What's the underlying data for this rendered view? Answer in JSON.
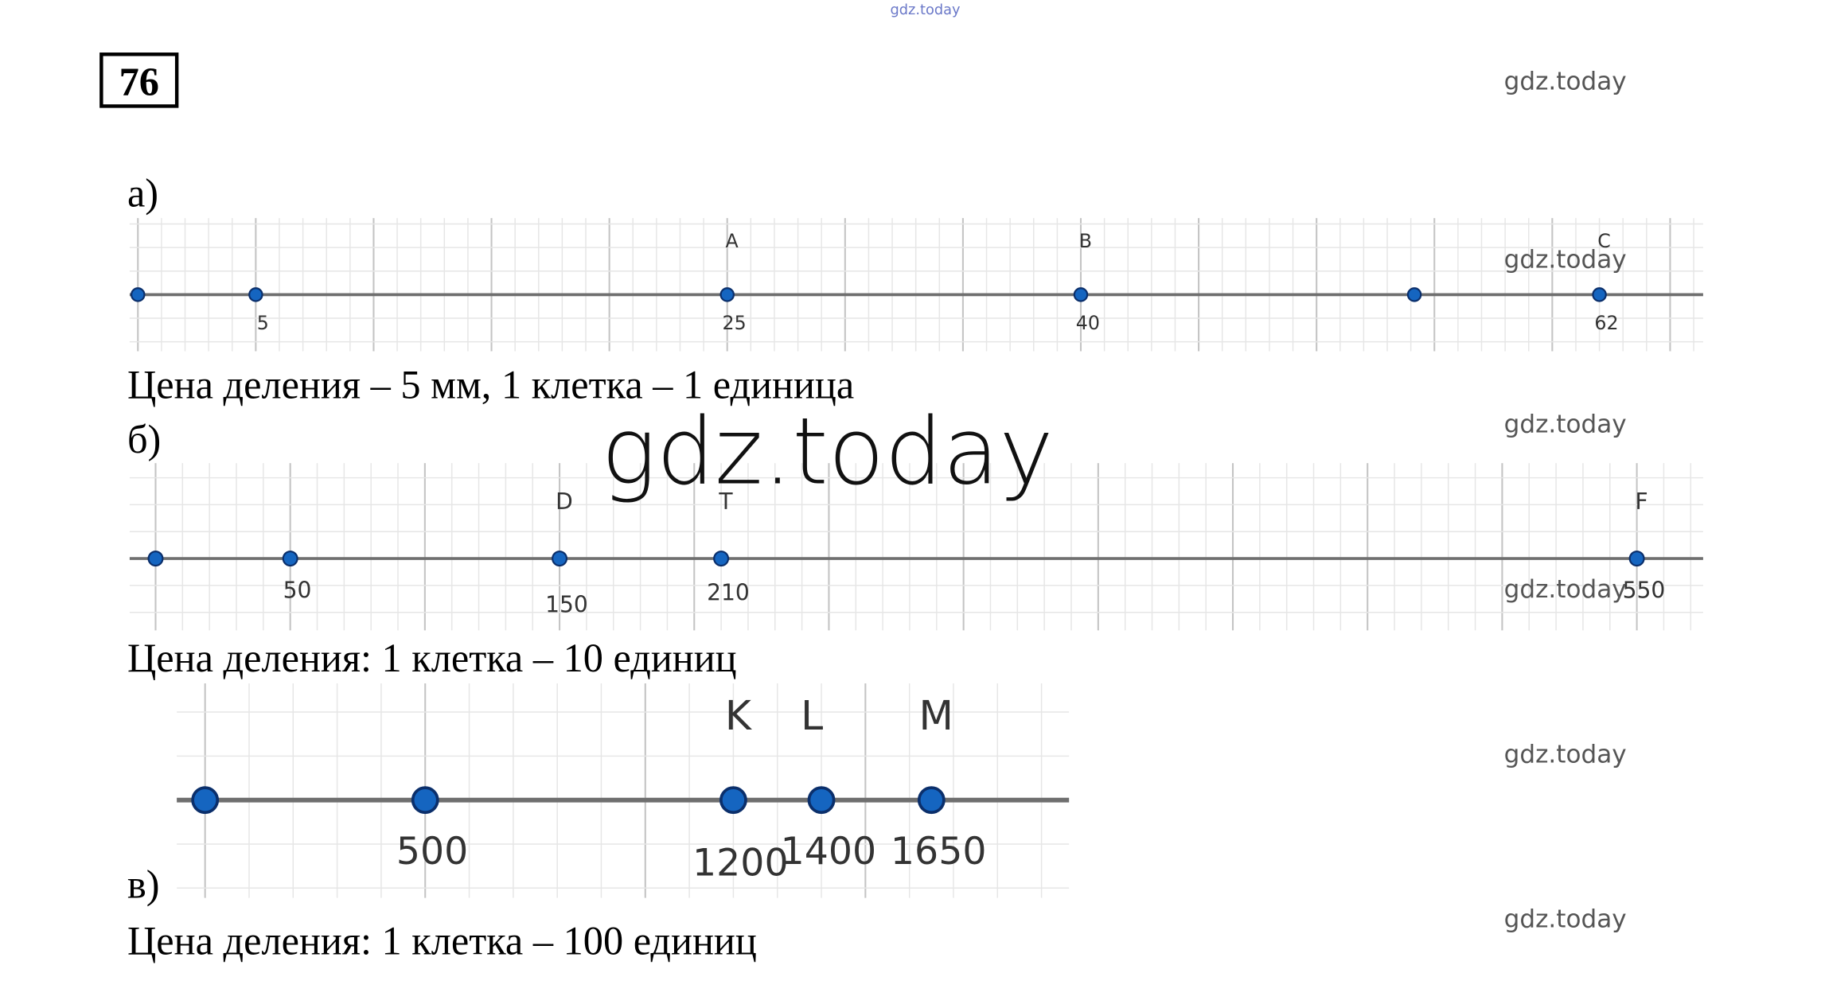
{
  "watermarks": {
    "top": "gdz.today",
    "center": "gdz.today",
    "side": [
      "gdz.today",
      "gdz.today",
      "gdz.today",
      "gdz.today",
      "gdz.today",
      "gdz.today"
    ]
  },
  "problem_number": "76",
  "parts": [
    {
      "label": "а)",
      "points": [
        {
          "value": 5
        },
        {
          "name": "A",
          "value": 25
        },
        {
          "name": "B",
          "value": 40
        },
        {
          "name": "C",
          "value": 62
        }
      ],
      "caption": "Цена деления – 5 мм, 1 клетка – 1 единица"
    },
    {
      "label": "б)",
      "points": [
        {
          "value": 50
        },
        {
          "name": "D",
          "value": 150
        },
        {
          "name": "T",
          "value": 210
        },
        {
          "name": "F",
          "value": 550
        }
      ],
      "caption": "Цена деления: 1 клетка – 10 единиц"
    },
    {
      "label": "в)",
      "points": [
        {
          "value": 500
        },
        {
          "name": "K",
          "value": 1200
        },
        {
          "name": "L",
          "value": 1400
        },
        {
          "name": "M",
          "value": 1650
        }
      ],
      "caption": "Цена деления: 1 клетка – 100 единиц"
    }
  ]
}
